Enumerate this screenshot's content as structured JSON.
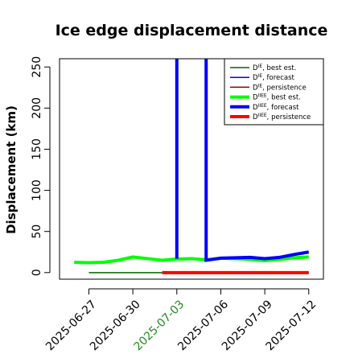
{
  "chart_data": {
    "type": "line",
    "title": "Ice edge displacement distance",
    "ylabel": "Displacement (km)",
    "xlabel": "",
    "ylim": [
      -8,
      260
    ],
    "xlim": [
      "2025-06-25",
      "2025-07-13"
    ],
    "y_ticks": [
      0,
      50,
      100,
      150,
      200,
      250
    ],
    "x_ticks": [
      {
        "date": "2025-06-27",
        "label": "2025-06-27",
        "color": "#000000"
      },
      {
        "date": "2025-06-30",
        "label": "2025-06-30",
        "color": "#000000"
      },
      {
        "date": "2025-07-03",
        "label": "2025-07-03",
        "color": "#228b22"
      },
      {
        "date": "2025-07-06",
        "label": "2025-07-06",
        "color": "#000000"
      },
      {
        "date": "2025-07-09",
        "label": "2025-07-09",
        "color": "#000000"
      },
      {
        "date": "2025-07-12",
        "label": "2025-07-12",
        "color": "#000000"
      }
    ],
    "legend_position": "top-right",
    "grid": false,
    "series": [
      {
        "name": "D^IE, best est.",
        "legend_main": "D",
        "legend_sup": "IE",
        "legend_rest": ", best est.",
        "color": "#006400",
        "width": 1.5,
        "x": [
          "2025-06-27",
          "2025-07-12"
        ],
        "y": [
          0,
          0
        ]
      },
      {
        "name": "D^IE, forecast",
        "legend_main": "D",
        "legend_sup": "IE",
        "legend_rest": ", forecast",
        "color": "#0000ff",
        "width": 1.5,
        "x": [],
        "y": []
      },
      {
        "name": "D^IE, persistence",
        "legend_main": "D",
        "legend_sup": "IE",
        "legend_rest": ", persistence",
        "color": "#8b0000",
        "width": 1.5,
        "x": [],
        "y": []
      },
      {
        "name": "D^IIEE, best est.",
        "legend_main": "D",
        "legend_sup": "IIEE",
        "legend_rest": ", best est.",
        "color": "#00ff00",
        "width": 4,
        "x": [
          "2025-06-26",
          "2025-06-27",
          "2025-06-28",
          "2025-06-29",
          "2025-06-30",
          "2025-07-01",
          "2025-07-02",
          "2025-07-03",
          "2025-07-04",
          "2025-07-05",
          "2025-07-06",
          "2025-07-07",
          "2025-07-08",
          "2025-07-09",
          "2025-07-10",
          "2025-07-11",
          "2025-07-12"
        ],
        "y": [
          12.5,
          12,
          12.5,
          15,
          19,
          17,
          15,
          16.5,
          17,
          15.5,
          17.5,
          17,
          16,
          14.5,
          16,
          18,
          19
        ]
      },
      {
        "name": "D^IIEE, forecast",
        "legend_main": "D",
        "legend_sup": "IIEE",
        "legend_rest": ", forecast",
        "color": "#0000ff",
        "width": 4,
        "x": [
          "2025-07-03",
          "2025-07-03",
          "2025-07-05",
          "2025-07-05",
          "2025-07-06",
          "2025-07-07",
          "2025-07-08",
          "2025-07-09",
          "2025-07-10",
          "2025-07-11",
          "2025-07-12"
        ],
        "y": [
          17,
          295,
          295,
          15,
          17.5,
          18,
          18.5,
          17,
          18.5,
          22,
          25
        ]
      },
      {
        "name": "D^IIEE, persistence",
        "legend_main": "D",
        "legend_sup": "IIEE",
        "legend_rest": ", persistence",
        "color": "#ff0000",
        "width": 4,
        "x": [
          "2025-07-02",
          "2025-07-12"
        ],
        "y": [
          0,
          0
        ]
      }
    ]
  }
}
